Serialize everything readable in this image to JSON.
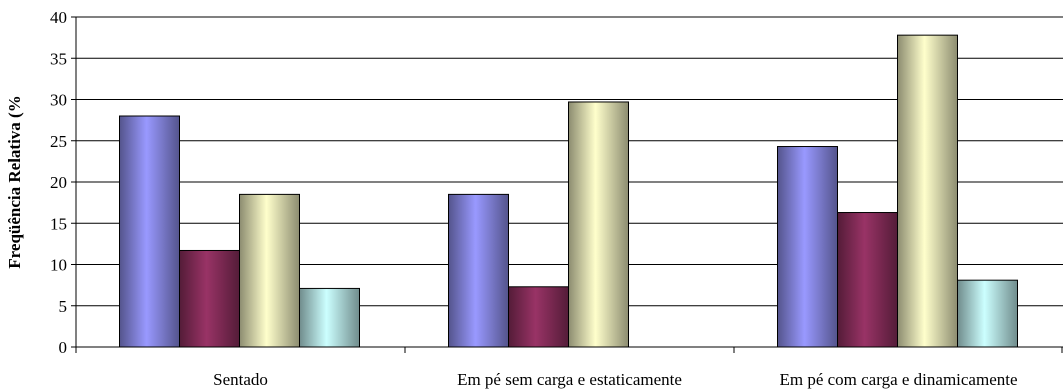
{
  "chart_data": {
    "type": "bar",
    "title": "",
    "xlabel": "",
    "ylabel": "Freqüência Relativa (%",
    "ylim": [
      0,
      40
    ],
    "yticks": [
      0,
      5,
      10,
      15,
      20,
      25,
      30,
      35,
      40
    ],
    "grid": true,
    "legend": "none",
    "categories": [
      "Sentado",
      "Em pé sem carga e estaticamente",
      "Em pé com carga e dinamicamente"
    ],
    "series": [
      {
        "values": [
          28,
          18.5,
          24.3
        ],
        "color": "#9999ff"
      },
      {
        "values": [
          11.7,
          7.3,
          16.3
        ],
        "color": "#993366"
      },
      {
        "values": [
          18.5,
          29.7,
          37.8
        ],
        "color": "#ffffcc"
      },
      {
        "values": [
          7.1,
          null,
          8.1
        ],
        "color": "#ccffff"
      }
    ]
  }
}
